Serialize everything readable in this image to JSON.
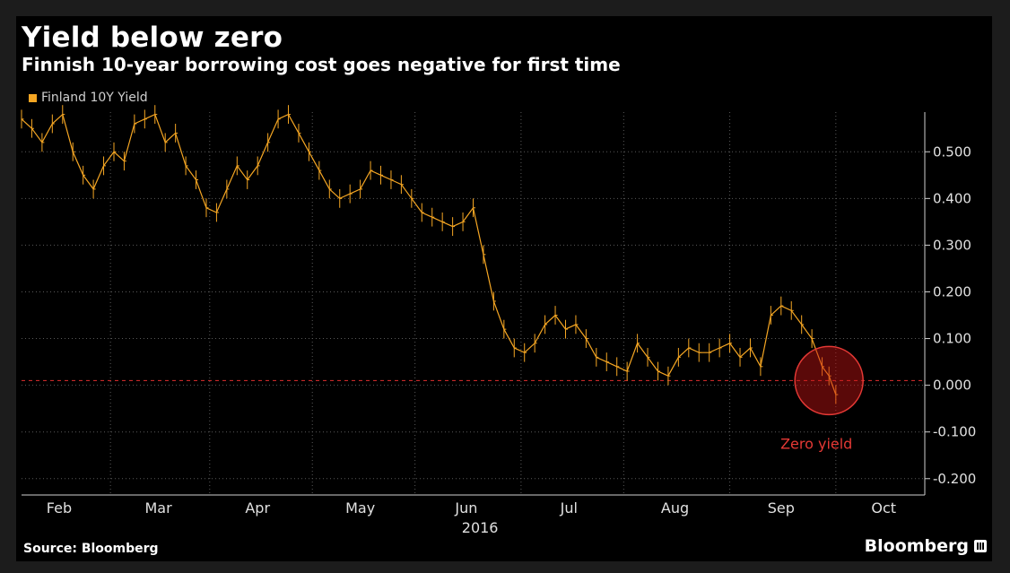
{
  "header": {
    "title": "Yield below zero",
    "subtitle": "Finnish 10-year borrowing cost goes negative for first time"
  },
  "footer": {
    "source": "Source: Bloomberg",
    "brand": "Bloomberg"
  },
  "colors": {
    "series": "#f5a623",
    "reference": "#c62828",
    "annotation": "#e53935",
    "grid": "#5a5a5a",
    "text": "#d0d0d0"
  },
  "chart_data": {
    "type": "line",
    "title": "Yield below zero",
    "subtitle": "Finnish 10-year borrowing cost goes negative for first time",
    "legend": {
      "entries": [
        "Finland 10Y Yield"
      ],
      "placement": "top-left"
    },
    "y_axis": {
      "side": "right",
      "range": [
        -0.235,
        0.585
      ],
      "ticks": [
        0.5,
        0.4,
        0.3,
        0.2,
        0.1,
        0.0,
        -0.1,
        -0.2
      ],
      "tick_labels": [
        "0.500",
        "0.400",
        "0.300",
        "0.200",
        "0.100",
        "0.000",
        "-0.100",
        "-0.200"
      ]
    },
    "x_axis": {
      "range_days": [
        0,
        264
      ],
      "month_labels": [
        "Feb",
        "Mar",
        "Apr",
        "May",
        "Jun",
        "Jul",
        "Aug",
        "Sep",
        "Oct"
      ],
      "month_label_days": [
        11,
        40,
        69,
        99,
        130,
        160,
        191,
        222,
        252
      ],
      "gridline_days": [
        26,
        55,
        85,
        115,
        146,
        176,
        207,
        238
      ],
      "year_label": "2016",
      "year_label_day": 134
    },
    "reference_line": {
      "y": 0.01,
      "style": "dashed"
    },
    "annotation": {
      "label": "Zero yield",
      "day": 236,
      "y": 0.01
    },
    "series": [
      {
        "name": "Finland 10Y Yield",
        "x": [
          0,
          3,
          6,
          9,
          12,
          15,
          18,
          21,
          24,
          27,
          30,
          33,
          36,
          39,
          42,
          45,
          48,
          51,
          54,
          57,
          60,
          63,
          66,
          69,
          72,
          75,
          78,
          81,
          84,
          87,
          90,
          93,
          96,
          99,
          102,
          105,
          108,
          111,
          114,
          117,
          120,
          123,
          126,
          129,
          132,
          135,
          138,
          141,
          144,
          147,
          150,
          153,
          156,
          159,
          162,
          165,
          168,
          171,
          174,
          177,
          180,
          183,
          186,
          189,
          192,
          195,
          198,
          201,
          204,
          207,
          210,
          213,
          216,
          219,
          222,
          225,
          228,
          231,
          234,
          236,
          238
        ],
        "y": [
          0.57,
          0.55,
          0.52,
          0.56,
          0.58,
          0.5,
          0.45,
          0.42,
          0.47,
          0.5,
          0.48,
          0.56,
          0.57,
          0.58,
          0.52,
          0.54,
          0.47,
          0.44,
          0.38,
          0.37,
          0.42,
          0.47,
          0.44,
          0.47,
          0.52,
          0.57,
          0.58,
          0.54,
          0.5,
          0.46,
          0.42,
          0.4,
          0.41,
          0.42,
          0.46,
          0.45,
          0.44,
          0.43,
          0.4,
          0.37,
          0.36,
          0.35,
          0.34,
          0.35,
          0.38,
          0.28,
          0.18,
          0.12,
          0.08,
          0.07,
          0.09,
          0.13,
          0.15,
          0.12,
          0.13,
          0.1,
          0.06,
          0.05,
          0.04,
          0.03,
          0.09,
          0.06,
          0.03,
          0.02,
          0.06,
          0.08,
          0.07,
          0.07,
          0.08,
          0.09,
          0.06,
          0.08,
          0.04,
          0.15,
          0.17,
          0.16,
          0.13,
          0.1,
          0.04,
          0.02,
          -0.02
        ]
      }
    ]
  }
}
